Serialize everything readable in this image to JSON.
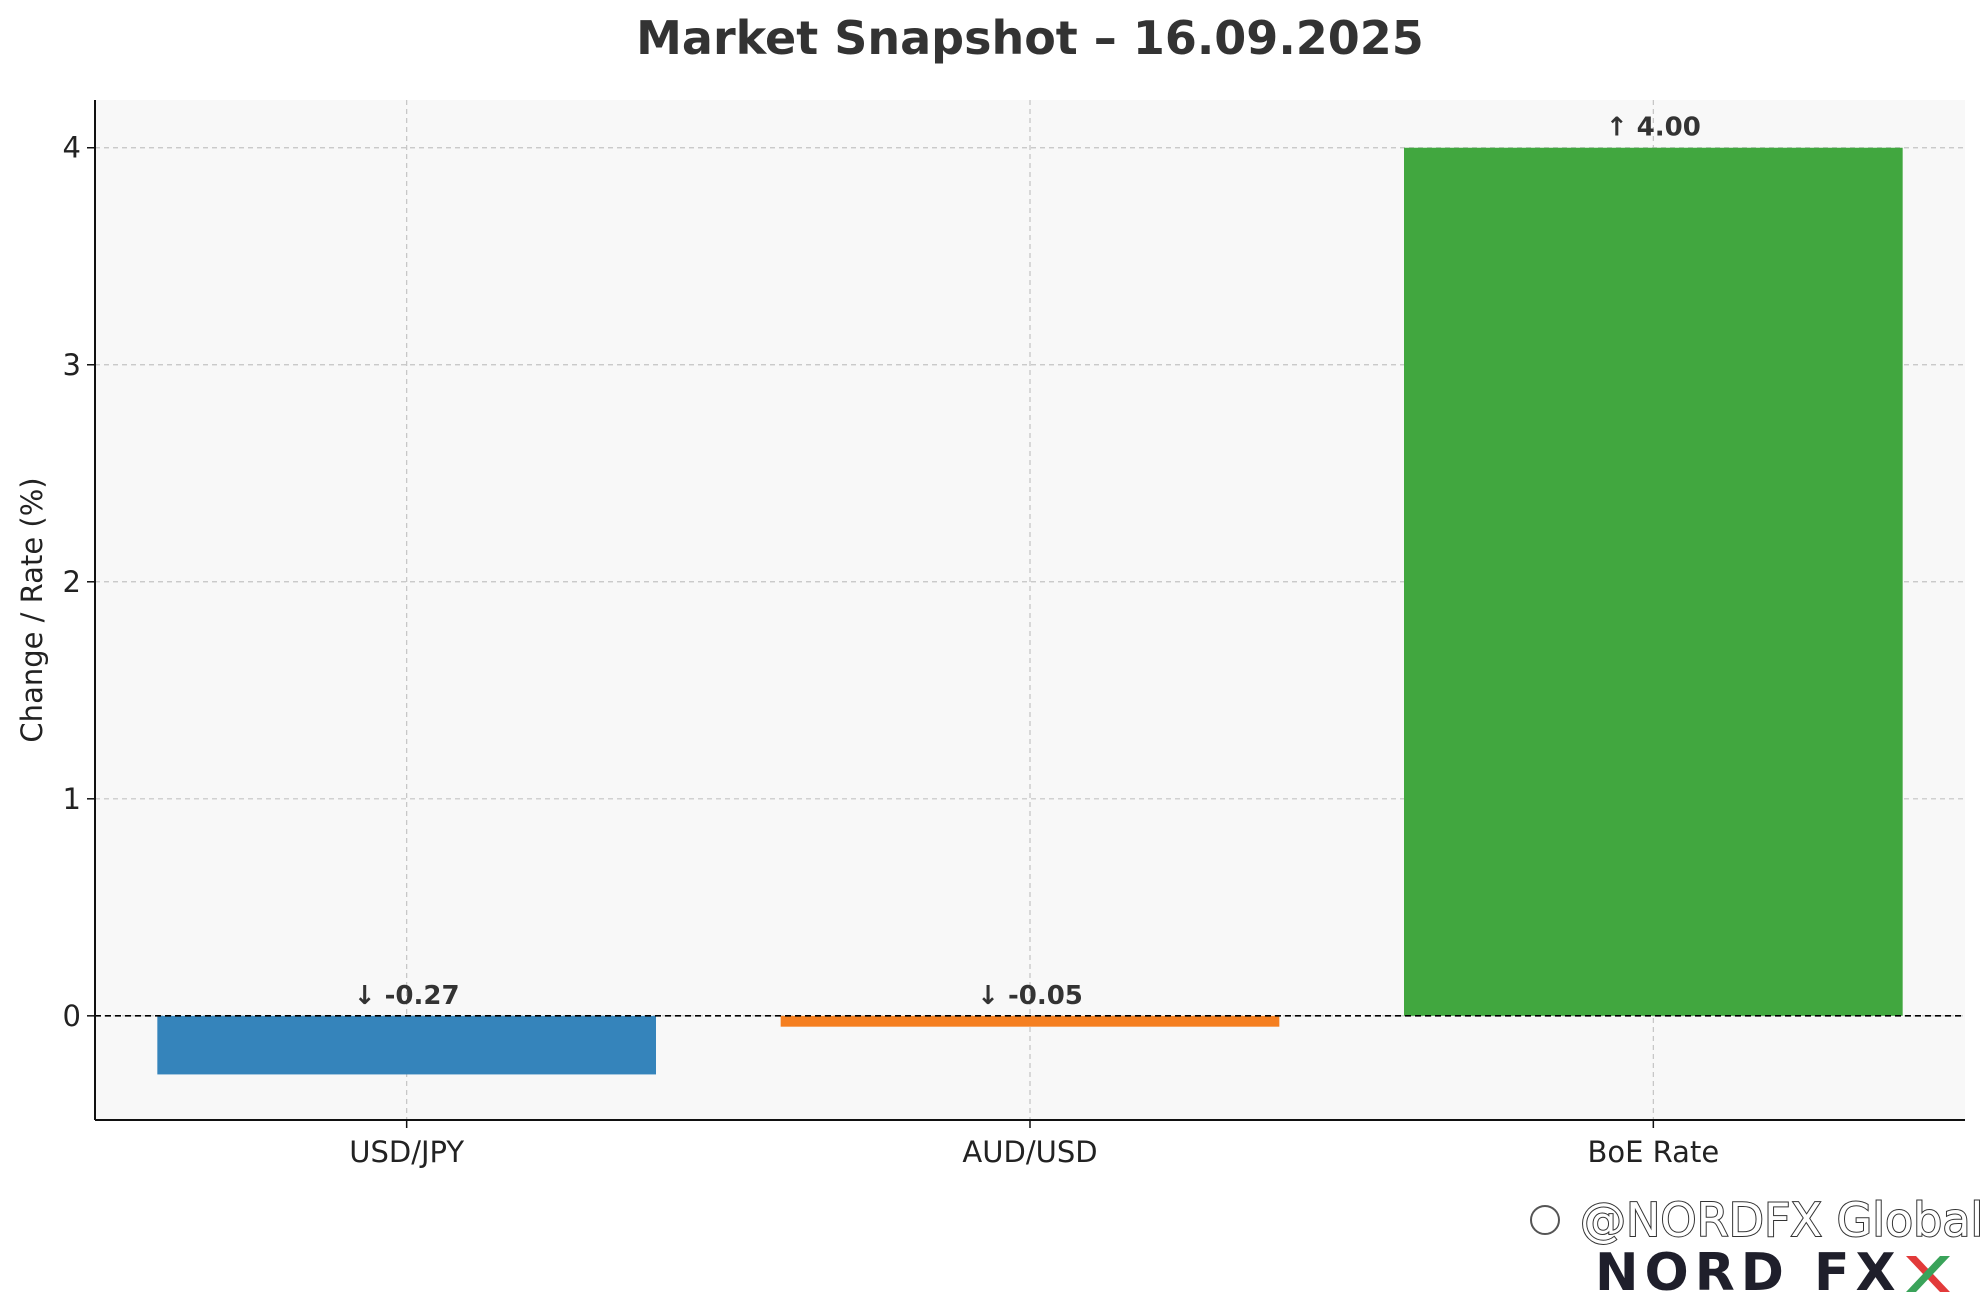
{
  "chart_data": {
    "type": "bar",
    "title": "Market Snapshot – 16.09.2025",
    "xlabel": "",
    "ylabel": "Change / Rate (%)",
    "categories": [
      "USD/JPY",
      "AUD/USD",
      "BoE Rate"
    ],
    "values": [
      -0.27,
      -0.05,
      4.0
    ],
    "value_labels": [
      "↓ -0.27",
      "↓ -0.05",
      "↑ 4.00"
    ],
    "colors": [
      "#3584bb",
      "#f57f20",
      "#41a73f"
    ],
    "ylim": [
      -0.48,
      4.22
    ],
    "yticks": [
      0,
      1,
      2,
      3,
      4
    ],
    "grid": true,
    "zero_line": "dashed",
    "background": "#f8f8f8"
  },
  "watermark": {
    "handle": "@NORDFX Global",
    "logo_text": "NORD FX",
    "logo_colors": [
      "#e23a3a",
      "#3aa35a"
    ]
  }
}
